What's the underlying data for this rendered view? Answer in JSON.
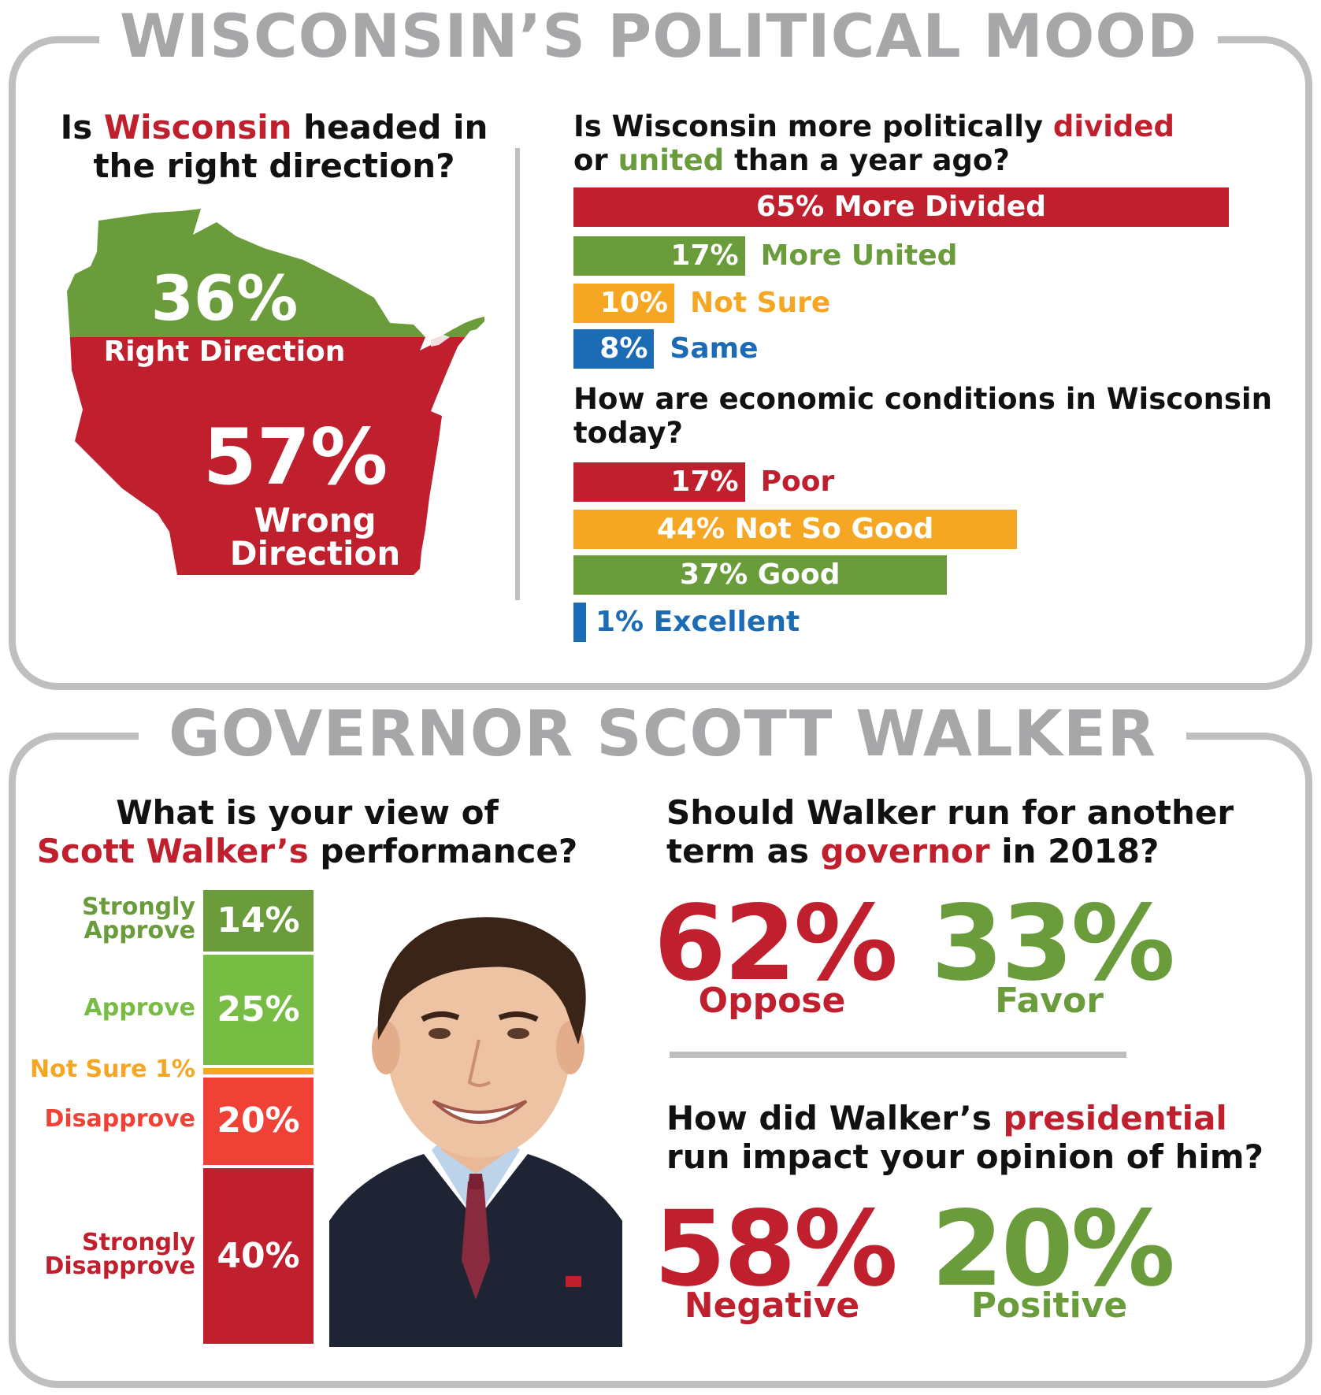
{
  "colors": {
    "red": "#c0202e",
    "green": "#6a9c3c",
    "light_green": "#77bc43",
    "orange": "#f5a623",
    "blue": "#1b6bb5",
    "salmon": "#ef4136",
    "gray": "#bfbfc1"
  },
  "mood": {
    "title": "WISCONSIN’S POLITICAL MOOD",
    "direction": {
      "q_pre": "Is ",
      "q_red": "Wisconsin",
      "q_post": " headed in the right direction?",
      "right_pct": "36%",
      "right_label": "Right Direction",
      "right_value": 36,
      "wrong_pct": "57%",
      "wrong_label": "Wrong Direction",
      "wrong_value": 57
    },
    "divided": {
      "q_pre": "Is Wisconsin more politically ",
      "q_red": "divided",
      "q_mid": " or ",
      "q_green": "united",
      "q_post": " than a year ago?"
    },
    "economy": {
      "question": "How are economic conditions in Wisconsin today?"
    }
  },
  "walker": {
    "title": "GOVERNOR SCOTT WALKER",
    "view": {
      "q_line1": "What is your view of",
      "q_red": "Scott Walker’s",
      "q_post": " performance?"
    },
    "rerun": {
      "q_pre": "Should Walker run for another term as ",
      "q_red": "governor",
      "q_post": " in 2018?",
      "oppose_pct": "62%",
      "oppose_label": "Oppose",
      "favor_pct": "33%",
      "favor_label": "Favor"
    },
    "presidential": {
      "q_pre": "How did Walker’s ",
      "q_red": "presidential",
      "q_post": " run impact your opinion of him?",
      "negative_pct": "58%",
      "negative_label": "Negative",
      "positive_pct": "20%",
      "positive_label": "Positive"
    }
  },
  "chart_data": [
    {
      "type": "pie",
      "categories": [
        "Right Direction",
        "Wrong Direction"
      ],
      "values": [
        36,
        57
      ]
    },
    {
      "type": "bar",
      "orientation": "horizontal",
      "categories": [
        "More Divided",
        "More United",
        "Not Sure",
        "Same"
      ],
      "values": [
        65,
        17,
        10,
        8
      ],
      "value_labels": [
        "65%",
        "17%",
        "10%",
        "8%"
      ],
      "xlim": [
        0,
        65
      ]
    },
    {
      "type": "bar",
      "orientation": "horizontal",
      "categories": [
        "Poor",
        "Not So Good",
        "Good",
        "Excellent"
      ],
      "values": [
        17,
        44,
        37,
        1
      ],
      "value_labels": [
        "17%",
        "44%",
        "37%",
        "1%"
      ],
      "xlim": [
        0,
        65
      ]
    },
    {
      "type": "bar",
      "orientation": "vertical-stacked",
      "categories": [
        "Strongly Approve",
        "Approve",
        "Not Sure",
        "Disapprove",
        "Strongly Disapprove"
      ],
      "values": [
        14,
        25,
        1,
        20,
        40
      ],
      "value_labels": [
        "14%",
        "25%",
        "1%",
        "20%",
        "40%"
      ],
      "category_labels": [
        [
          "Strongly",
          "Approve"
        ],
        [
          "Approve"
        ],
        [
          "Not Sure 1%"
        ],
        [
          "Disapprove"
        ],
        [
          "Strongly",
          "Disapprove"
        ]
      ]
    },
    {
      "type": "bar",
      "categories": [
        "Oppose",
        "Favor"
      ],
      "values": [
        62,
        33
      ]
    },
    {
      "type": "bar",
      "categories": [
        "Negative",
        "Positive"
      ],
      "values": [
        58,
        20
      ]
    }
  ]
}
